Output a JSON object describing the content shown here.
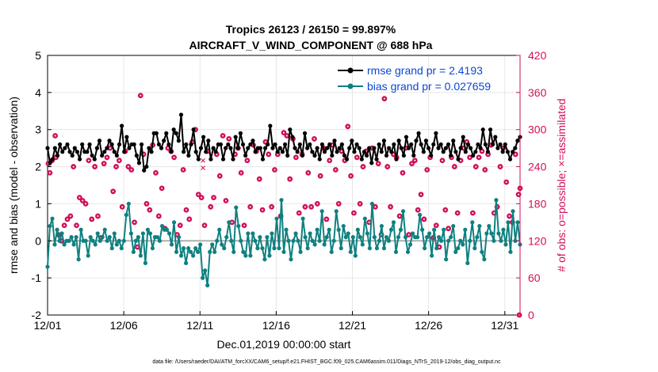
{
  "chart_data": {
    "type": "line",
    "title_line1": "Tropics 26123 / 26150 = 99.897%",
    "title_line2": "AIRCRAFT_V_WIND_COMPONENT @ 688 hPa",
    "ylabel_left": "rmse and bias (model - observation)",
    "ylabel_right": "# of obs: o=possible; ×=assimilated",
    "xlabel": "Dec.01,2019 00:00:00 start",
    "footer": "data file: /Users/raeder/DAI/ATM_forcXX/CAM6_setup/f.e21.FHIST_BGC.f09_025.CAM6assim.011/Diags_NTrS_2019-12/obs_diag_output.nc",
    "ylim_left": [
      -2,
      5
    ],
    "ylim_right": [
      0,
      420
    ],
    "xlim": [
      0,
      31
    ],
    "xticks": [
      0,
      5,
      10,
      15,
      20,
      25,
      30
    ],
    "xtick_labels": [
      "12/01",
      "12/06",
      "12/11",
      "12/16",
      "12/21",
      "12/26",
      "12/31"
    ],
    "yticks_left": [
      -2,
      -1,
      0,
      1,
      2,
      3,
      4,
      5
    ],
    "yticks_right": [
      0,
      60,
      120,
      180,
      240,
      300,
      360,
      420
    ],
    "grid": true,
    "legend": {
      "position": "top-right",
      "entries": [
        {
          "label": "rmse grand pr = 2.4193",
          "color": "#000000"
        },
        {
          "label": "bias grand pr = 0.027659",
          "color": "#0f8080"
        }
      ]
    },
    "colors": {
      "rmse": "#000000",
      "bias": "#0f8080",
      "obs": "#d0105a",
      "zero_line": "#b0b0b0"
    },
    "series": [
      {
        "name": "rmse",
        "values": [
          2.5,
          2.1,
          2.2,
          2.5,
          2.3,
          2.6,
          2.4,
          2.5,
          2.6,
          2.4,
          2.3,
          2.5,
          2.4,
          2.2,
          2.6,
          2.4,
          2.4,
          2.6,
          2.3,
          2.2,
          2.5,
          2.7,
          2.3,
          2.4,
          2.5,
          2.7,
          2.6,
          2.4,
          2.3,
          2.6,
          3.1,
          2.4,
          2.8,
          2.5,
          2.6,
          2.6,
          2.3,
          2.1,
          2.6,
          1.9,
          2.0,
          2.5,
          2.4,
          2.9,
          2.9,
          2.6,
          2.5,
          2.7,
          2.9,
          2.6,
          2.4,
          3.0,
          2.9,
          2.7,
          3.4,
          2.4,
          2.6,
          2.3,
          2.6,
          3.0,
          2.4,
          2.2,
          2.5,
          2.8,
          2.4,
          2.7,
          2.2,
          2.5,
          2.4,
          2.6,
          2.6,
          2.2,
          2.5,
          2.6,
          2.5,
          2.2,
          2.8,
          2.5,
          2.9,
          2.6,
          2.3,
          2.5,
          2.6,
          2.7,
          2.4,
          2.5,
          2.5,
          2.2,
          2.5,
          2.6,
          3.1,
          2.5,
          2.6,
          2.4,
          2.5,
          2.4,
          2.6,
          2.3,
          3.0,
          2.8,
          2.5,
          2.4,
          2.6,
          2.3,
          2.9,
          2.5,
          2.6,
          2.4,
          2.3,
          2.5,
          2.2,
          2.6,
          2.4,
          2.5,
          2.6,
          2.3,
          2.7,
          2.4,
          2.5,
          2.6,
          2.3,
          2.2,
          2.5,
          2.7,
          2.4,
          2.6,
          2.5,
          2.2,
          2.4,
          2.3,
          2.5,
          2.1,
          2.5,
          2.2,
          2.6,
          2.4,
          2.7,
          2.3,
          2.5,
          2.4,
          2.6,
          2.2,
          2.7,
          2.5,
          2.3,
          2.8,
          2.5,
          2.6,
          2.3,
          2.7,
          2.9,
          2.6,
          2.4,
          2.7,
          2.5,
          2.3,
          2.6,
          2.9,
          2.5,
          2.6,
          2.4,
          2.5,
          2.6,
          2.3,
          2.7,
          2.4,
          2.2,
          2.5,
          2.8,
          2.4,
          2.6,
          2.5,
          2.3,
          2.4,
          2.6,
          2.5,
          3.0,
          2.6,
          2.4,
          3.0,
          2.6,
          2.8,
          2.5,
          2.6,
          2.4,
          2.6,
          2.4,
          2.2,
          2.4,
          2.5,
          2.7,
          2.8
        ]
      },
      {
        "name": "bias",
        "values": [
          -0.7,
          0.4,
          0.6,
          -0.1,
          0.3,
          0.0,
          0.2,
          -0.1,
          0.0,
          0.0,
          0.1,
          -0.1,
          0.1,
          -0.5,
          0.3,
          0.0,
          0.0,
          -0.4,
          0.1,
          0.0,
          -0.1,
          0.2,
          0.0,
          0.1,
          0.3,
          0.0,
          0.1,
          -0.2,
          0.2,
          -0.1,
          0.0,
          -0.2,
          0.0,
          0.7,
          1.0,
          0.2,
          -0.3,
          0.0,
          0.1,
          -0.4,
          0.2,
          -0.6,
          0.3,
          0.2,
          -0.2,
          0.1,
          0.1,
          0.0,
          0.4,
          0.3,
          0.3,
          0.2,
          -0.1,
          0.5,
          -0.3,
          0.1,
          -0.4,
          -0.2,
          -0.6,
          -0.2,
          -0.3,
          -0.4,
          -0.2,
          -0.3,
          -0.1,
          -1.0,
          -0.8,
          -1.2,
          -0.3,
          -0.1,
          -0.3,
          0.0,
          0.3,
          -0.1,
          -0.2,
          0.1,
          0.5,
          0.0,
          -0.3,
          0.9,
          0.4,
          0.0,
          -0.3,
          -0.4,
          0.2,
          -0.4,
          0.2,
          0.0,
          -0.2,
          0.1,
          -0.2,
          -0.5,
          0.1,
          -0.4,
          0.2,
          -0.2,
          0.6,
          -0.2,
          1.1,
          -0.3,
          0.3,
          0.0,
          -0.5,
          0.0,
          0.2,
          0.0,
          -0.3,
          0.6,
          0.1,
          -0.2,
          0.2,
          0.0,
          -0.1,
          0.3,
          0.0,
          0.8,
          -0.1,
          0.1,
          0.3,
          -0.3,
          0.0,
          0.8,
          0.3,
          -0.2,
          0.4,
          0.1,
          0.2,
          -0.3,
          0.1,
          -0.4,
          0.3,
          0.1,
          -0.1,
          0.6,
          0.2,
          -0.2,
          1.0,
          0.1,
          -0.2,
          0.0,
          0.4,
          -0.2,
          0.1,
          0.0,
          0.3,
          0.5,
          -0.3,
          0.1,
          0.3,
          0.8,
          0.1,
          -0.3,
          -0.1,
          0.2,
          0.1,
          0.1,
          0.7,
          0.3,
          -0.2,
          0.1,
          0.2,
          -0.4,
          0.3,
          -0.2,
          0.1,
          0.0,
          0.3,
          -0.5,
          0.0,
          0.1,
          0.4,
          -0.3,
          -0.2,
          0.0,
          -0.1,
          0.3,
          -0.6,
          0.0,
          0.5,
          -0.2,
          0.1,
          0.4,
          -0.3,
          -0.5,
          0.2,
          0.4,
          0.2,
          0.0,
          1.1,
          0.2,
          0.0,
          0.3,
          -0.1,
          0.5,
          -0.3,
          0.8,
          0.0,
          0.5,
          -0.1
        ]
      }
    ],
    "obs_possible": [
      [
        0.05,
        245
      ],
      [
        0.15,
        230
      ],
      [
        0.3,
        250
      ],
      [
        0.5,
        290
      ],
      [
        0.55,
        255
      ],
      [
        0.7,
        130
      ],
      [
        0.9,
        120
      ],
      [
        1.1,
        145
      ],
      [
        1.3,
        155
      ],
      [
        1.5,
        160
      ],
      [
        1.7,
        240
      ],
      [
        1.9,
        145
      ],
      [
        2.1,
        190
      ],
      [
        2.3,
        185
      ],
      [
        2.5,
        180
      ],
      [
        2.7,
        250
      ],
      [
        2.9,
        155
      ],
      [
        3.1,
        240
      ],
      [
        3.3,
        160
      ],
      [
        3.5,
        125
      ],
      [
        3.7,
        245
      ],
      [
        3.9,
        255
      ],
      [
        4.1,
        270
      ],
      [
        4.3,
        200
      ],
      [
        4.5,
        240
      ],
      [
        4.7,
        250
      ],
      [
        4.9,
        175
      ],
      [
        5.1,
        265
      ],
      [
        5.3,
        240
      ],
      [
        5.5,
        235
      ],
      [
        5.7,
        150
      ],
      [
        5.9,
        110
      ],
      [
        6.1,
        355
      ],
      [
        6.3,
        260
      ],
      [
        6.5,
        180
      ],
      [
        6.7,
        170
      ],
      [
        6.9,
        275
      ],
      [
        7.1,
        230
      ],
      [
        7.3,
        160
      ],
      [
        7.5,
        205
      ],
      [
        7.7,
        140
      ],
      [
        7.9,
        270
      ],
      [
        8.1,
        265
      ],
      [
        8.3,
        255
      ],
      [
        8.5,
        130
      ],
      [
        8.7,
        145
      ],
      [
        8.9,
        235
      ],
      [
        9.1,
        170
      ],
      [
        9.3,
        155
      ],
      [
        9.5,
        280
      ],
      [
        9.7,
        300
      ],
      [
        9.9,
        195
      ],
      [
        10.1,
        190
      ],
      [
        10.3,
        145
      ],
      [
        10.5,
        265
      ],
      [
        10.7,
        175
      ],
      [
        10.9,
        190
      ],
      [
        11.1,
        260
      ],
      [
        11.3,
        225
      ],
      [
        11.5,
        290
      ],
      [
        11.7,
        185
      ],
      [
        11.9,
        285
      ],
      [
        12.1,
        150
      ],
      [
        12.3,
        260
      ],
      [
        12.5,
        270
      ],
      [
        12.7,
        230
      ],
      [
        12.9,
        145
      ],
      [
        13.1,
        250
      ],
      [
        13.3,
        175
      ],
      [
        13.5,
        275
      ],
      [
        13.7,
        265
      ],
      [
        13.9,
        220
      ],
      [
        14.1,
        170
      ],
      [
        14.3,
        280
      ],
      [
        14.5,
        260
      ],
      [
        14.7,
        175
      ],
      [
        14.9,
        235
      ],
      [
        15.1,
        260
      ],
      [
        15.3,
        160
      ],
      [
        15.5,
        295
      ],
      [
        15.7,
        290
      ],
      [
        15.9,
        220
      ],
      [
        16.1,
        285
      ],
      [
        16.3,
        255
      ],
      [
        16.5,
        165
      ],
      [
        16.7,
        260
      ],
      [
        16.9,
        175
      ],
      [
        17.1,
        230
      ],
      [
        17.3,
        175
      ],
      [
        17.5,
        285
      ],
      [
        17.7,
        180
      ],
      [
        17.9,
        225
      ],
      [
        18.1,
        270
      ],
      [
        18.3,
        155
      ],
      [
        18.5,
        250
      ],
      [
        18.7,
        275
      ],
      [
        18.9,
        235
      ],
      [
        19.1,
        180
      ],
      [
        19.3,
        265
      ],
      [
        19.5,
        250
      ],
      [
        19.7,
        305
      ],
      [
        19.9,
        225
      ],
      [
        20.1,
        165
      ],
      [
        20.3,
        255
      ],
      [
        20.5,
        180
      ],
      [
        20.7,
        240
      ],
      [
        20.9,
        265
      ],
      [
        21.1,
        150
      ],
      [
        21.3,
        270
      ],
      [
        21.5,
        175
      ],
      [
        21.7,
        245
      ],
      [
        21.9,
        130
      ],
      [
        22.1,
        350
      ],
      [
        22.3,
        240
      ],
      [
        22.5,
        175
      ],
      [
        22.7,
        260
      ],
      [
        22.9,
        255
      ],
      [
        23.1,
        160
      ],
      [
        23.3,
        230
      ],
      [
        23.5,
        270
      ],
      [
        23.7,
        130
      ],
      [
        23.9,
        245
      ],
      [
        24.1,
        250
      ],
      [
        24.3,
        170
      ],
      [
        24.5,
        195
      ],
      [
        24.7,
        155
      ],
      [
        24.9,
        235
      ],
      [
        25.1,
        255
      ],
      [
        25.3,
        125
      ],
      [
        25.5,
        145
      ],
      [
        25.7,
        110
      ],
      [
        25.9,
        250
      ],
      [
        26.1,
        170
      ],
      [
        26.3,
        140
      ],
      [
        26.5,
        255
      ],
      [
        26.7,
        240
      ],
      [
        26.9,
        165
      ],
      [
        27.1,
        250
      ],
      [
        27.3,
        270
      ],
      [
        27.5,
        280
      ],
      [
        27.7,
        255
      ],
      [
        27.9,
        165
      ],
      [
        28.1,
        240
      ],
      [
        28.3,
        255
      ],
      [
        28.5,
        265
      ],
      [
        28.7,
        235
      ],
      [
        28.9,
        260
      ],
      [
        29.1,
        275
      ],
      [
        29.3,
        165
      ],
      [
        29.5,
        175
      ],
      [
        29.7,
        240
      ],
      [
        29.9,
        270
      ],
      [
        30.1,
        215
      ],
      [
        30.3,
        160
      ],
      [
        30.5,
        150
      ],
      [
        30.7,
        260
      ],
      [
        30.9,
        195
      ],
      [
        31.0,
        205
      ],
      [
        30.95,
        0
      ]
    ],
    "obs_assimilated": [
      [
        10.2,
        238
      ],
      [
        10.2,
        250
      ]
    ]
  }
}
